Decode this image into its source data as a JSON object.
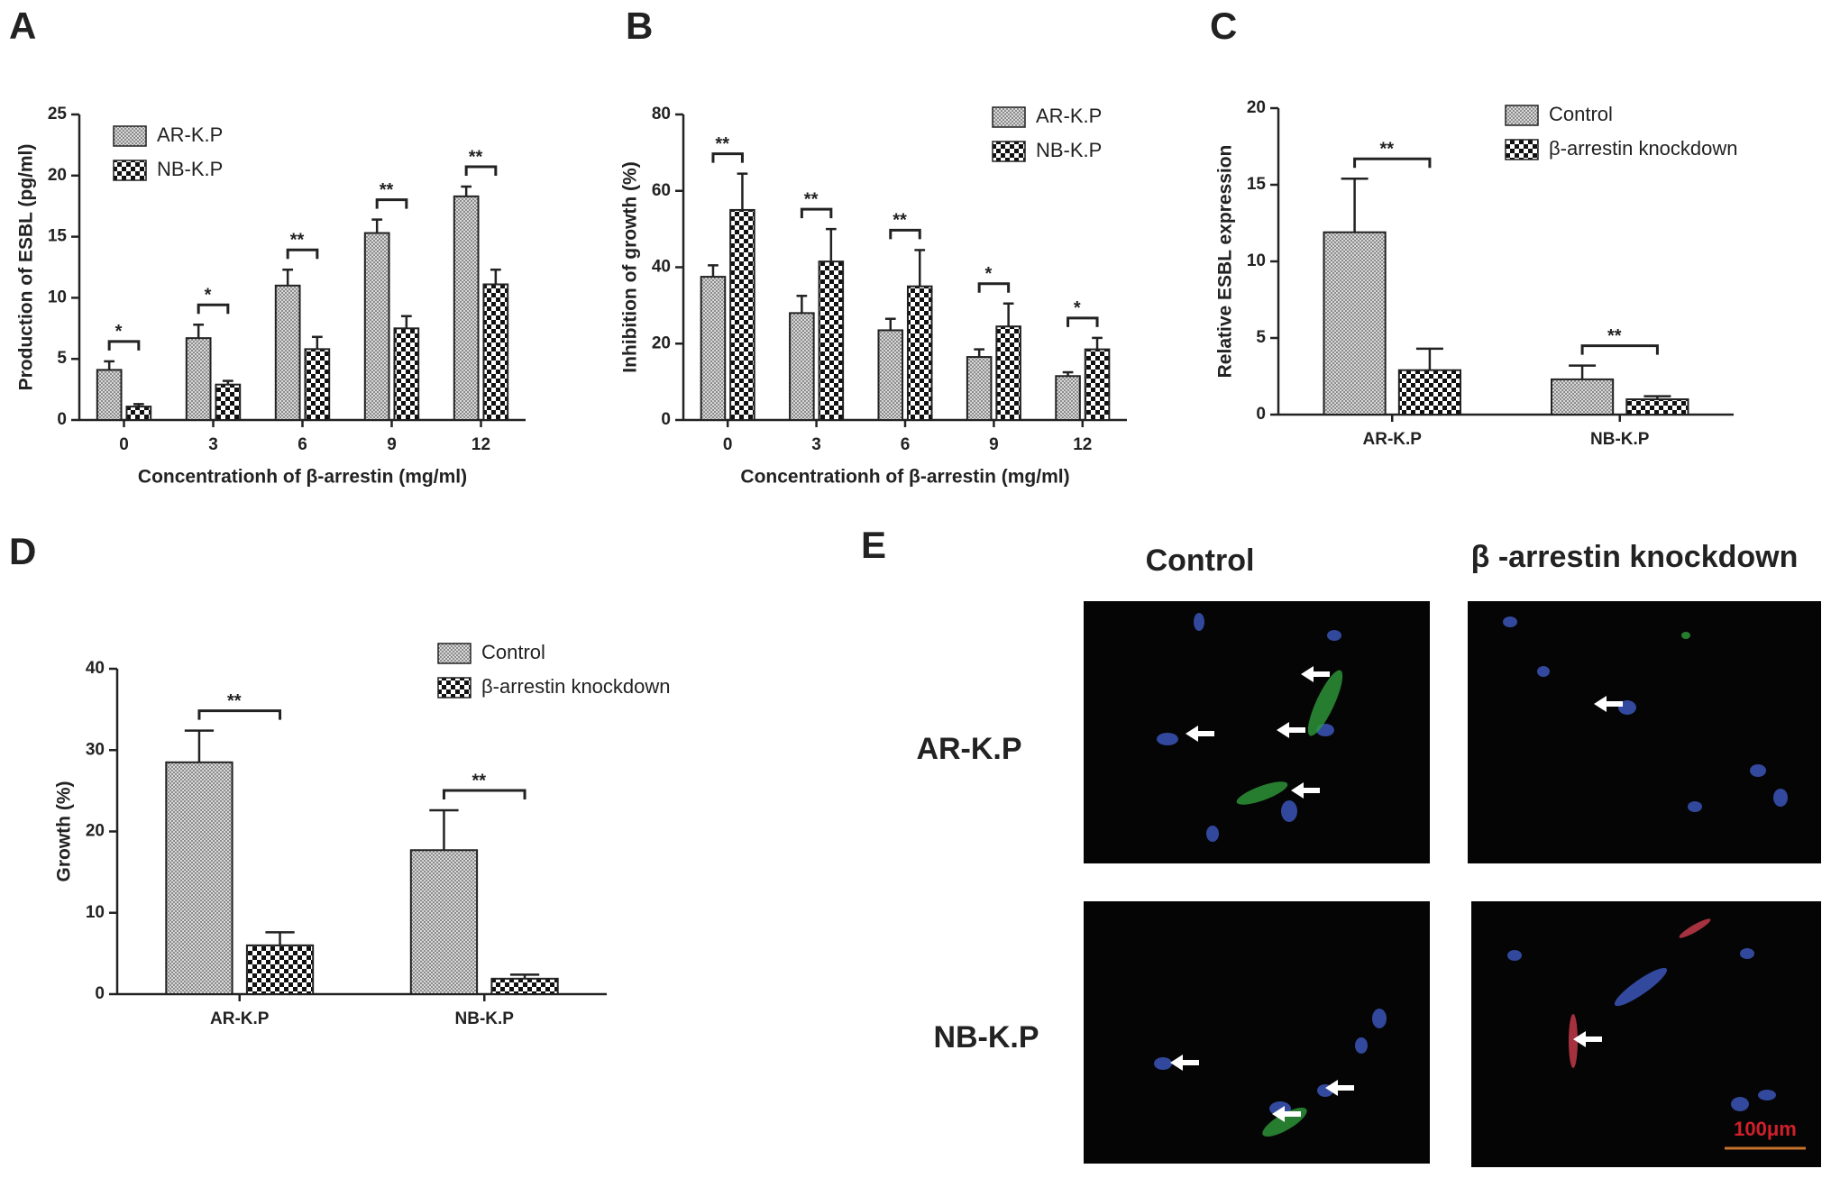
{
  "chart_data": [
    {
      "type": "bar",
      "panel": "A",
      "ylabel": "Production of ESBL (pg/ml)",
      "xlabel": "Concentrationh of β-arrestin (mg/ml)",
      "categories": [
        "0",
        "3",
        "6",
        "9",
        "12"
      ],
      "series": [
        {
          "name": "AR-K.P",
          "color": "#8c8c8c",
          "pattern": "dots",
          "values": [
            4.1,
            6.7,
            11.0,
            15.3,
            18.3
          ],
          "errors": [
            0.7,
            1.1,
            1.3,
            1.1,
            0.8
          ]
        },
        {
          "name": "NB-K.P",
          "color": "#111111",
          "pattern": "checker",
          "values": [
            1.1,
            2.9,
            5.8,
            7.5,
            11.1
          ],
          "errors": [
            0.2,
            0.3,
            1.0,
            1.0,
            1.2
          ]
        }
      ],
      "significance": [
        "*",
        "*",
        "**",
        "**",
        "**"
      ],
      "ylim": [
        0,
        25
      ],
      "yticks": [
        0,
        5,
        10,
        15,
        20,
        25
      ]
    },
    {
      "type": "bar",
      "panel": "B",
      "ylabel": "Inhibition of growth (%)",
      "xlabel": "Concentrationh of β-arrestin (mg/ml)",
      "categories": [
        "0",
        "3",
        "6",
        "9",
        "12"
      ],
      "series": [
        {
          "name": "AR-K.P",
          "color": "#8c8c8c",
          "pattern": "dots",
          "values": [
            37.5,
            28,
            23.5,
            16.5,
            11.5
          ],
          "errors": [
            3,
            4.5,
            3,
            2,
            1
          ]
        },
        {
          "name": "NB-K.P",
          "color": "#111111",
          "pattern": "checker",
          "values": [
            55,
            41.5,
            35,
            24.5,
            18.5
          ],
          "errors": [
            9.5,
            8.5,
            9.5,
            6,
            3
          ]
        }
      ],
      "significance": [
        "**",
        "**",
        "**",
        "*",
        "*"
      ],
      "ylim": [
        0,
        80
      ],
      "yticks": [
        0,
        20,
        40,
        60,
        80
      ]
    },
    {
      "type": "bar",
      "panel": "C",
      "ylabel": "Relative ESBL expression",
      "categories": [
        "AR-K.P",
        "NB-K.P"
      ],
      "series": [
        {
          "name": "Control",
          "color": "#8c8c8c",
          "pattern": "dots",
          "values": [
            11.9,
            2.3
          ],
          "errors": [
            3.5,
            0.9
          ]
        },
        {
          "name": "β-arrestin knockdown",
          "color": "#111111",
          "pattern": "checker",
          "values": [
            2.9,
            1.0
          ],
          "errors": [
            1.4,
            0.2
          ]
        }
      ],
      "significance": [
        "**",
        "**"
      ],
      "ylim": [
        0,
        20
      ],
      "yticks": [
        0,
        5,
        10,
        15,
        20
      ]
    },
    {
      "type": "bar",
      "panel": "D",
      "ylabel": "Growth (%)",
      "categories": [
        "AR-K.P",
        "NB-K.P"
      ],
      "series": [
        {
          "name": "Control",
          "color": "#8c8c8c",
          "pattern": "dots",
          "values": [
            28.5,
            17.7
          ],
          "errors": [
            3.9,
            4.9
          ]
        },
        {
          "name": "β-arrestin knockdown",
          "color": "#111111",
          "pattern": "checker",
          "values": [
            6.0,
            1.9
          ],
          "errors": [
            1.6,
            0.5
          ]
        }
      ],
      "significance": [
        "**",
        "**"
      ],
      "ylim": [
        0,
        40
      ],
      "yticks": [
        0,
        10,
        20,
        30,
        40
      ]
    }
  ],
  "panel_e": {
    "panel": "E",
    "columns": [
      "Control",
      "β -arrestin knockdown"
    ],
    "rows": [
      "AR-K.P",
      "NB-K.P"
    ],
    "scale_bar": "100μm"
  }
}
